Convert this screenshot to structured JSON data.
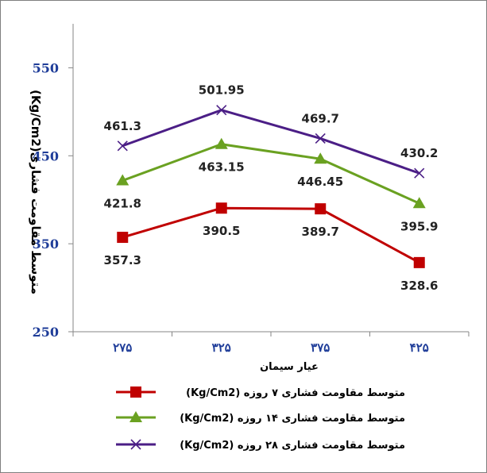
{
  "chart_data": {
    "type": "line",
    "categories": [
      "۲۷۵",
      "۳۲۵",
      "۳۷۵",
      "۴۲۵"
    ],
    "xlabel": "عیار سیمان",
    "ylabel": "متوسط مقاومت فشاری(Kg/Cm2)",
    "ylim": [
      250,
      600
    ],
    "yticks": [
      "250",
      "350",
      "450",
      "550"
    ],
    "y_tick_values": [
      250,
      350,
      450,
      550
    ],
    "grid": false,
    "legend_position": "bottom",
    "series": [
      {
        "name": "متوسط مقاومت فشاری ۷ روزه (Kg/Cm2)",
        "values": [
          357.3,
          390.5,
          389.7,
          328.6
        ],
        "labels": [
          "357.3",
          "390.5",
          "389.7",
          "328.6"
        ],
        "color": "#c00000",
        "marker": "square"
      },
      {
        "name": "متوسط مقاومت فشاری ۱۴ روزه (Kg/Cm2)",
        "values": [
          421.8,
          463.15,
          446.45,
          395.9
        ],
        "labels": [
          "421.8",
          "463.15",
          "446.45",
          "395.9"
        ],
        "color": "#6aa121",
        "marker": "triangle"
      },
      {
        "name": "متوسط مقاومت فشاری ۲۸ روزه (Kg/Cm2)",
        "values": [
          461.3,
          501.95,
          469.7,
          430.2
        ],
        "labels": [
          "461.3",
          "501.95",
          "469.7",
          "430.2"
        ],
        "color": "#4b1e86",
        "marker": "x"
      }
    ]
  }
}
